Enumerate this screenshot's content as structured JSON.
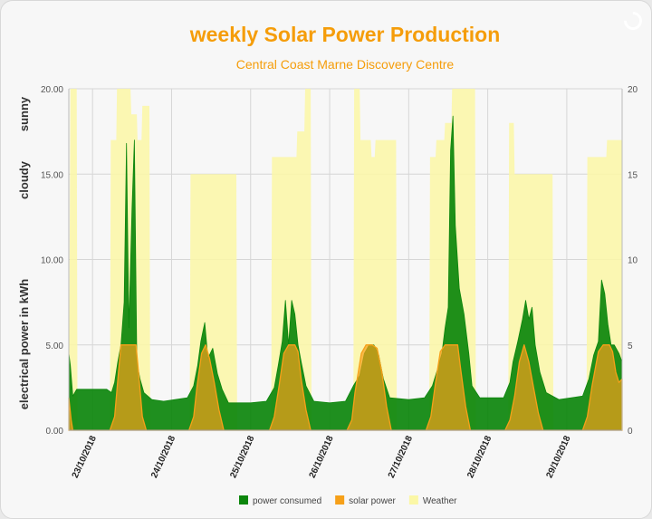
{
  "chart_data": {
    "type": "area",
    "title": "weekly Solar Power Production",
    "subtitle": "Central Coast Marne Discovery Centre",
    "ylabel_top": "sunny",
    "ylabel_mid": "cloudy",
    "ylabel": "electrical power  in kWh",
    "ylim": [
      0,
      20
    ],
    "yticks_left": [
      "0.00",
      "5.00",
      "10.00",
      "15.00",
      "20.00"
    ],
    "yticks_right": [
      "0",
      "5",
      "10",
      "15",
      "20"
    ],
    "xlim": [
      -0.3,
      6.7
    ],
    "x_tick_positions": [
      0,
      1,
      2,
      3,
      4,
      5,
      6
    ],
    "x_tick_labels": [
      "23/10/2018",
      "24/10/2018",
      "25/10/2018",
      "26/10/2018",
      "27/10/2018",
      "28/10/2018",
      "29/10/2018"
    ],
    "grid": true,
    "legend_position": "bottom",
    "series": [
      {
        "name": "Weather",
        "color": "#fbf7a6",
        "kind": "area",
        "points": [
          [
            -0.3,
            0
          ],
          [
            -0.28,
            20
          ],
          [
            -0.2,
            20
          ],
          [
            -0.19,
            0
          ],
          [
            0.22,
            0
          ],
          [
            0.23,
            17
          ],
          [
            0.3,
            17
          ],
          [
            0.31,
            20
          ],
          [
            0.48,
            20
          ],
          [
            0.49,
            18.5
          ],
          [
            0.56,
            18.5
          ],
          [
            0.57,
            17
          ],
          [
            0.62,
            17
          ],
          [
            0.63,
            19
          ],
          [
            0.72,
            19
          ],
          [
            0.73,
            0
          ],
          [
            1.23,
            0
          ],
          [
            1.24,
            15
          ],
          [
            1.82,
            15
          ],
          [
            1.83,
            0
          ],
          [
            2.26,
            0
          ],
          [
            2.27,
            16
          ],
          [
            2.58,
            16
          ],
          [
            2.59,
            17.5
          ],
          [
            2.68,
            17.5
          ],
          [
            2.69,
            20
          ],
          [
            2.76,
            20
          ],
          [
            2.77,
            0
          ],
          [
            3.3,
            0
          ],
          [
            3.31,
            20
          ],
          [
            3.38,
            20
          ],
          [
            3.39,
            17
          ],
          [
            3.52,
            17
          ],
          [
            3.53,
            16
          ],
          [
            3.57,
            16
          ],
          [
            3.58,
            17
          ],
          [
            3.84,
            17
          ],
          [
            3.85,
            0
          ],
          [
            4.26,
            0
          ],
          [
            4.27,
            16
          ],
          [
            4.34,
            16
          ],
          [
            4.35,
            17
          ],
          [
            4.45,
            17
          ],
          [
            4.46,
            18
          ],
          [
            4.54,
            18
          ],
          [
            4.55,
            20
          ],
          [
            4.84,
            20
          ],
          [
            4.85,
            0
          ],
          [
            5.26,
            0
          ],
          [
            5.27,
            18
          ],
          [
            5.33,
            18
          ],
          [
            5.34,
            15
          ],
          [
            5.82,
            15
          ],
          [
            5.83,
            0
          ],
          [
            6.25,
            0
          ],
          [
            6.26,
            16
          ],
          [
            6.5,
            16
          ],
          [
            6.51,
            17
          ],
          [
            6.7,
            17
          ],
          [
            6.7,
            0
          ]
        ]
      },
      {
        "name": "power consumed",
        "color": "#0c860c",
        "kind": "area",
        "points": [
          [
            -0.3,
            0
          ],
          [
            -0.3,
            4.5
          ],
          [
            -0.28,
            3.8
          ],
          [
            -0.25,
            2
          ],
          [
            -0.2,
            2.4
          ],
          [
            0,
            2.4
          ],
          [
            0.18,
            2.4
          ],
          [
            0.24,
            2.2
          ],
          [
            0.28,
            2.8
          ],
          [
            0.32,
            4
          ],
          [
            0.36,
            5
          ],
          [
            0.4,
            7.5
          ],
          [
            0.43,
            16.8
          ],
          [
            0.46,
            6
          ],
          [
            0.5,
            13
          ],
          [
            0.53,
            17
          ],
          [
            0.56,
            4
          ],
          [
            0.6,
            3
          ],
          [
            0.65,
            2.2
          ],
          [
            0.75,
            1.8
          ],
          [
            0.9,
            1.7
          ],
          [
            1.2,
            1.9
          ],
          [
            1.28,
            2.6
          ],
          [
            1.33,
            3.8
          ],
          [
            1.37,
            5.2
          ],
          [
            1.42,
            6.3
          ],
          [
            1.46,
            4.2
          ],
          [
            1.52,
            4.8
          ],
          [
            1.58,
            3.3
          ],
          [
            1.64,
            2.4
          ],
          [
            1.72,
            1.6
          ],
          [
            2.0,
            1.6
          ],
          [
            2.2,
            1.7
          ],
          [
            2.3,
            2.5
          ],
          [
            2.35,
            3.8
          ],
          [
            2.4,
            5.2
          ],
          [
            2.44,
            7.6
          ],
          [
            2.48,
            5
          ],
          [
            2.52,
            7.6
          ],
          [
            2.56,
            6.8
          ],
          [
            2.6,
            5
          ],
          [
            2.64,
            4
          ],
          [
            2.7,
            2.6
          ],
          [
            2.8,
            1.7
          ],
          [
            3.0,
            1.6
          ],
          [
            3.2,
            1.7
          ],
          [
            3.3,
            2.6
          ],
          [
            3.38,
            3.2
          ],
          [
            3.44,
            4.5
          ],
          [
            3.5,
            5
          ],
          [
            3.56,
            5
          ],
          [
            3.62,
            4.4
          ],
          [
            3.68,
            3
          ],
          [
            3.76,
            1.9
          ],
          [
            4.0,
            1.8
          ],
          [
            4.2,
            1.9
          ],
          [
            4.3,
            2.6
          ],
          [
            4.36,
            3.5
          ],
          [
            4.42,
            4.5
          ],
          [
            4.46,
            6
          ],
          [
            4.5,
            7.2
          ],
          [
            4.53,
            16.4
          ],
          [
            4.56,
            18.4
          ],
          [
            4.59,
            12
          ],
          [
            4.64,
            8.3
          ],
          [
            4.7,
            6.8
          ],
          [
            4.76,
            4.5
          ],
          [
            4.8,
            2.6
          ],
          [
            4.9,
            1.9
          ],
          [
            5.2,
            1.9
          ],
          [
            5.28,
            2.8
          ],
          [
            5.32,
            4
          ],
          [
            5.38,
            5.2
          ],
          [
            5.44,
            6.5
          ],
          [
            5.48,
            7.6
          ],
          [
            5.52,
            6.5
          ],
          [
            5.56,
            7.2
          ],
          [
            5.6,
            5
          ],
          [
            5.66,
            3.4
          ],
          [
            5.74,
            2.2
          ],
          [
            5.9,
            1.8
          ],
          [
            6.2,
            2
          ],
          [
            6.28,
            3
          ],
          [
            6.34,
            4.4
          ],
          [
            6.4,
            5.2
          ],
          [
            6.44,
            8.8
          ],
          [
            6.48,
            8
          ],
          [
            6.52,
            6.2
          ],
          [
            6.56,
            5
          ],
          [
            6.6,
            5
          ],
          [
            6.66,
            4.5
          ],
          [
            6.7,
            4
          ],
          [
            6.7,
            0
          ]
        ]
      },
      {
        "name": "solar power",
        "color": "#f6a019",
        "kind": "area",
        "points": [
          [
            -0.3,
            0
          ],
          [
            -0.3,
            1.9
          ],
          [
            -0.27,
            0.6
          ],
          [
            -0.25,
            0
          ],
          [
            0.22,
            0
          ],
          [
            0.28,
            0.8
          ],
          [
            0.33,
            3.5
          ],
          [
            0.36,
            5
          ],
          [
            0.55,
            5
          ],
          [
            0.58,
            3.5
          ],
          [
            0.63,
            0.8
          ],
          [
            0.68,
            0
          ],
          [
            1.22,
            0
          ],
          [
            1.28,
            0.8
          ],
          [
            1.32,
            2.5
          ],
          [
            1.38,
            4.5
          ],
          [
            1.43,
            5
          ],
          [
            1.48,
            4.2
          ],
          [
            1.54,
            2.8
          ],
          [
            1.6,
            1.2
          ],
          [
            1.66,
            0
          ],
          [
            2.24,
            0
          ],
          [
            2.3,
            0.8
          ],
          [
            2.36,
            2.6
          ],
          [
            2.42,
            4.5
          ],
          [
            2.48,
            5
          ],
          [
            2.56,
            5
          ],
          [
            2.6,
            4.6
          ],
          [
            2.64,
            3
          ],
          [
            2.7,
            1.2
          ],
          [
            2.76,
            0
          ],
          [
            3.22,
            0
          ],
          [
            3.28,
            0.6
          ],
          [
            3.32,
            2.2
          ],
          [
            3.4,
            4.5
          ],
          [
            3.46,
            5
          ],
          [
            3.54,
            5
          ],
          [
            3.6,
            4.8
          ],
          [
            3.66,
            3.4
          ],
          [
            3.72,
            1.4
          ],
          [
            3.78,
            0
          ],
          [
            4.22,
            0
          ],
          [
            4.28,
            0.8
          ],
          [
            4.34,
            2.8
          ],
          [
            4.4,
            4.6
          ],
          [
            4.46,
            5
          ],
          [
            4.62,
            5
          ],
          [
            4.66,
            3.5
          ],
          [
            4.72,
            1.4
          ],
          [
            4.78,
            0
          ],
          [
            5.22,
            0
          ],
          [
            5.28,
            0.6
          ],
          [
            5.34,
            2
          ],
          [
            5.4,
            4
          ],
          [
            5.46,
            5
          ],
          [
            5.52,
            4
          ],
          [
            5.58,
            2.5
          ],
          [
            5.64,
            1
          ],
          [
            5.7,
            0
          ],
          [
            6.2,
            0
          ],
          [
            6.26,
            0.8
          ],
          [
            6.32,
            2.6
          ],
          [
            6.4,
            4.6
          ],
          [
            6.46,
            5
          ],
          [
            6.54,
            5
          ],
          [
            6.58,
            4.6
          ],
          [
            6.62,
            3.4
          ],
          [
            6.66,
            2.8
          ],
          [
            6.7,
            3
          ],
          [
            6.7,
            0
          ]
        ]
      }
    ]
  },
  "legend": [
    {
      "label": "power consumed",
      "color": "#0c860c"
    },
    {
      "label": "solar power",
      "color": "#f6a019"
    },
    {
      "label": "Weather",
      "color": "#fbf7a6"
    }
  ]
}
